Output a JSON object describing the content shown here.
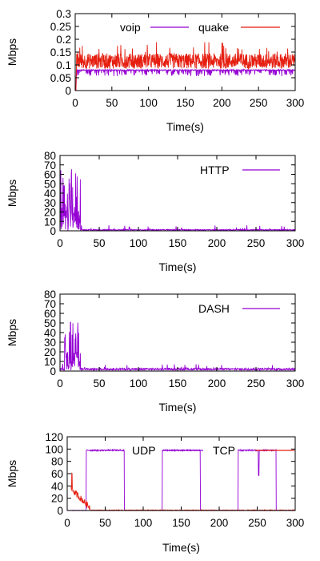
{
  "chart_data": [
    {
      "type": "line",
      "xlabel": "Time(s)",
      "ylabel": "Mbps",
      "xlim": [
        0,
        300
      ],
      "ylim": [
        0,
        0.3
      ],
      "xticks": [
        "0",
        "50",
        "100",
        "150",
        "200",
        "250",
        "300"
      ],
      "yticks": [
        "0",
        "0.05",
        "0.1",
        "0.15",
        "0.2",
        "0.25",
        "0.3"
      ],
      "legend": "top-center",
      "grid": false,
      "series": [
        {
          "name": "voip",
          "color": "#9400d3",
          "mean": 0.08,
          "jitter": 0.012,
          "noise": "low-dips",
          "spans": [
            [
              2,
              300
            ]
          ]
        },
        {
          "name": "quake",
          "color": "#e51e10",
          "mean": 0.115,
          "jitter": 0.03,
          "noise": "symmetric",
          "spans": [
            [
              2,
              300
            ]
          ]
        }
      ]
    },
    {
      "type": "line",
      "xlabel": "Time(s)",
      "ylabel": "Mbps",
      "xlim": [
        0,
        300
      ],
      "ylim": [
        0,
        80
      ],
      "xticks": [
        "0",
        "50",
        "100",
        "150",
        "200",
        "250",
        "300"
      ],
      "yticks": [
        "0",
        "10",
        "20",
        "30",
        "40",
        "50",
        "60",
        "70",
        "80"
      ],
      "legend": "top-right",
      "grid": false,
      "series": [
        {
          "name": "HTTP",
          "color": "#9400d3",
          "burst": {
            "from": 0,
            "to": 26,
            "peak": 66
          },
          "tail": {
            "from": 26,
            "to": 300,
            "level": 1
          }
        }
      ]
    },
    {
      "type": "line",
      "xlabel": "Time(s)",
      "ylabel": "Mbps",
      "xlim": [
        0,
        300
      ],
      "ylim": [
        0,
        80
      ],
      "xticks": [
        "0",
        "50",
        "100",
        "150",
        "200",
        "250",
        "300"
      ],
      "yticks": [
        "0",
        "10",
        "20",
        "30",
        "40",
        "50",
        "60",
        "70",
        "80"
      ],
      "legend": "top-right",
      "grid": false,
      "series": [
        {
          "name": "DASH",
          "color": "#9400d3",
          "burst": {
            "from": 5,
            "to": 26,
            "peak": 55
          },
          "tail": {
            "from": 26,
            "to": 300,
            "level": 2
          }
        }
      ]
    },
    {
      "type": "line",
      "xlabel": "Time(s)",
      "ylabel": "Mbps",
      "xlim": [
        0,
        300
      ],
      "ylim": [
        0,
        120
      ],
      "xticks": [
        "0",
        "50",
        "100",
        "150",
        "200",
        "250",
        "300"
      ],
      "yticks": [
        "0",
        "20",
        "40",
        "60",
        "80",
        "100",
        "120"
      ],
      "legend": "top-center",
      "grid": false,
      "series": [
        {
          "name": "UDP",
          "color": "#9400d3",
          "on_periods": [
            [
              25,
              75
            ],
            [
              125,
              175
            ],
            [
              225,
              275
            ]
          ],
          "level": 98
        },
        {
          "name": "TCP",
          "color": "#e51e10",
          "start": [
            5,
            30
          ],
          "level": 1
        }
      ]
    }
  ]
}
